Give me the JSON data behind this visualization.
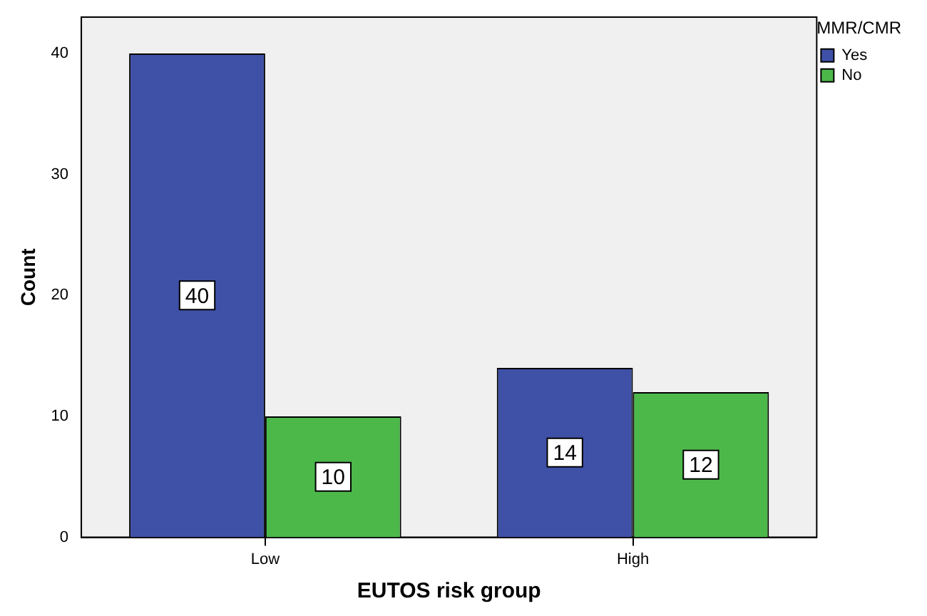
{
  "chart_data": {
    "type": "bar",
    "xlabel": "EUTOS risk group",
    "ylabel": "Count",
    "legend_title": "MMR/CMR",
    "legend": "top right",
    "categories": [
      "Low",
      "High"
    ],
    "series": [
      {
        "name": "Yes",
        "color": "#3f51a6",
        "values": [
          40,
          14
        ]
      },
      {
        "name": "No",
        "color": "#4cb84a",
        "values": [
          10,
          12
        ]
      }
    ],
    "ylim": [
      0,
      43
    ],
    "yticks": [
      0,
      10,
      20,
      30,
      40
    ],
    "grid": false,
    "data_labels": true
  }
}
